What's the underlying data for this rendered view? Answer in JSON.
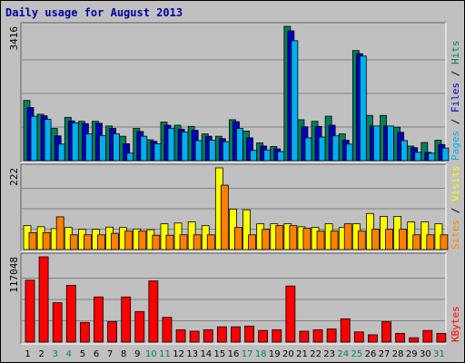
{
  "title": "Daily usage for August 2013",
  "chart_data": [
    {
      "type": "bar",
      "panel": "pages-files-hits",
      "scale_max_label": "3416",
      "ylim": [
        0,
        3416
      ],
      "grid": true,
      "series": [
        {
          "name": "Hits",
          "color": "#00805c",
          "values": [
            1530,
            1180,
            820,
            1100,
            1000,
            1000,
            880,
            620,
            820,
            530,
            980,
            900,
            870,
            680,
            620,
            1040,
            750,
            450,
            360,
            3416,
            1040,
            1000,
            1130,
            680,
            2800,
            1150,
            1150,
            850,
            370,
            460,
            520
          ]
        },
        {
          "name": "Files",
          "color": "#0000c0",
          "values": [
            1350,
            1140,
            630,
            1010,
            940,
            950,
            820,
            430,
            740,
            490,
            900,
            800,
            770,
            620,
            560,
            990,
            580,
            370,
            300,
            3300,
            860,
            870,
            900,
            520,
            2720,
            880,
            880,
            720,
            330,
            210,
            410
          ]
        },
        {
          "name": "Pages",
          "color": "#00b0f0",
          "values": [
            1130,
            1050,
            420,
            960,
            680,
            640,
            680,
            190,
            620,
            430,
            820,
            730,
            510,
            520,
            480,
            820,
            260,
            270,
            230,
            3050,
            580,
            600,
            630,
            420,
            2660,
            880,
            880,
            510,
            210,
            190,
            320
          ]
        }
      ]
    },
    {
      "type": "bar",
      "panel": "sites-visits",
      "scale_max_label": "222",
      "ylim": [
        0,
        222
      ],
      "grid": true,
      "series": [
        {
          "name": "Visits",
          "color": "#ffff00",
          "values": [
            65,
            62,
            57,
            60,
            55,
            55,
            61,
            60,
            56,
            54,
            70,
            72,
            75,
            65,
            222,
            110,
            108,
            70,
            70,
            70,
            62,
            60,
            70,
            60,
            70,
            98,
            90,
            90,
            75,
            75,
            70
          ]
        },
        {
          "name": "Sites",
          "color": "#ff8000",
          "values": [
            46,
            46,
            89,
            40,
            40,
            40,
            44,
            50,
            50,
            39,
            39,
            40,
            40,
            40,
            175,
            60,
            40,
            55,
            65,
            65,
            58,
            50,
            50,
            70,
            50,
            55,
            55,
            55,
            40,
            40,
            40
          ]
        }
      ]
    },
    {
      "type": "bar",
      "panel": "kbytes",
      "scale_max_label": "117048",
      "ylim": [
        0,
        117048
      ],
      "grid": true,
      "series": [
        {
          "name": "KBytes",
          "color": "#ff0000",
          "values": [
            85000,
            117048,
            54000,
            78000,
            27000,
            62000,
            28000,
            62000,
            42000,
            84000,
            34000,
            17000,
            15000,
            17000,
            21000,
            21000,
            22000,
            16000,
            17000,
            77000,
            15000,
            17000,
            18000,
            32000,
            14000,
            10000,
            28000,
            12000,
            6000,
            16000,
            12000
          ]
        }
      ]
    }
  ],
  "x_labels": [
    {
      "label": "1",
      "weekend": false
    },
    {
      "label": "2",
      "weekend": false
    },
    {
      "label": "3",
      "weekend": true
    },
    {
      "label": "4",
      "weekend": true
    },
    {
      "label": "5",
      "weekend": false
    },
    {
      "label": "6",
      "weekend": false
    },
    {
      "label": "7",
      "weekend": false
    },
    {
      "label": "8",
      "weekend": false
    },
    {
      "label": "9",
      "weekend": false
    },
    {
      "label": "10",
      "weekend": true
    },
    {
      "label": "11",
      "weekend": true
    },
    {
      "label": "12",
      "weekend": false
    },
    {
      "label": "13",
      "weekend": false
    },
    {
      "label": "14",
      "weekend": false
    },
    {
      "label": "15",
      "weekend": false
    },
    {
      "label": "16",
      "weekend": false
    },
    {
      "label": "17",
      "weekend": true
    },
    {
      "label": "18",
      "weekend": true
    },
    {
      "label": "19",
      "weekend": false
    },
    {
      "label": "20",
      "weekend": false
    },
    {
      "label": "21",
      "weekend": false
    },
    {
      "label": "22",
      "weekend": false
    },
    {
      "label": "23",
      "weekend": false
    },
    {
      "label": "24",
      "weekend": true
    },
    {
      "label": "25",
      "weekend": true
    },
    {
      "label": "26",
      "weekend": false
    },
    {
      "label": "27",
      "weekend": false
    },
    {
      "label": "28",
      "weekend": false
    },
    {
      "label": "29",
      "weekend": false
    },
    {
      "label": "30",
      "weekend": false
    },
    {
      "label": "31",
      "weekend": true
    }
  ],
  "legend_top": [
    {
      "text": "Pages",
      "color": "#00b0f0"
    },
    {
      "text": " / ",
      "color": "#000000"
    },
    {
      "text": "Files",
      "color": "#0000c0"
    },
    {
      "text": " / ",
      "color": "#000000"
    },
    {
      "text": "Hits",
      "color": "#00805c"
    }
  ],
  "legend_mid": [
    {
      "text": "Sites",
      "color": "#ff8000"
    },
    {
      "text": " / ",
      "color": "#000000"
    },
    {
      "text": "Visits",
      "color": "#ffff00"
    }
  ],
  "legend_bottom": [
    {
      "text": "KBytes",
      "color": "#ff0000"
    }
  ],
  "colors": {
    "weekday": "#000000",
    "weekend": "#00805c",
    "grid": "#808080",
    "panel_bg": "#c0c0c0"
  }
}
